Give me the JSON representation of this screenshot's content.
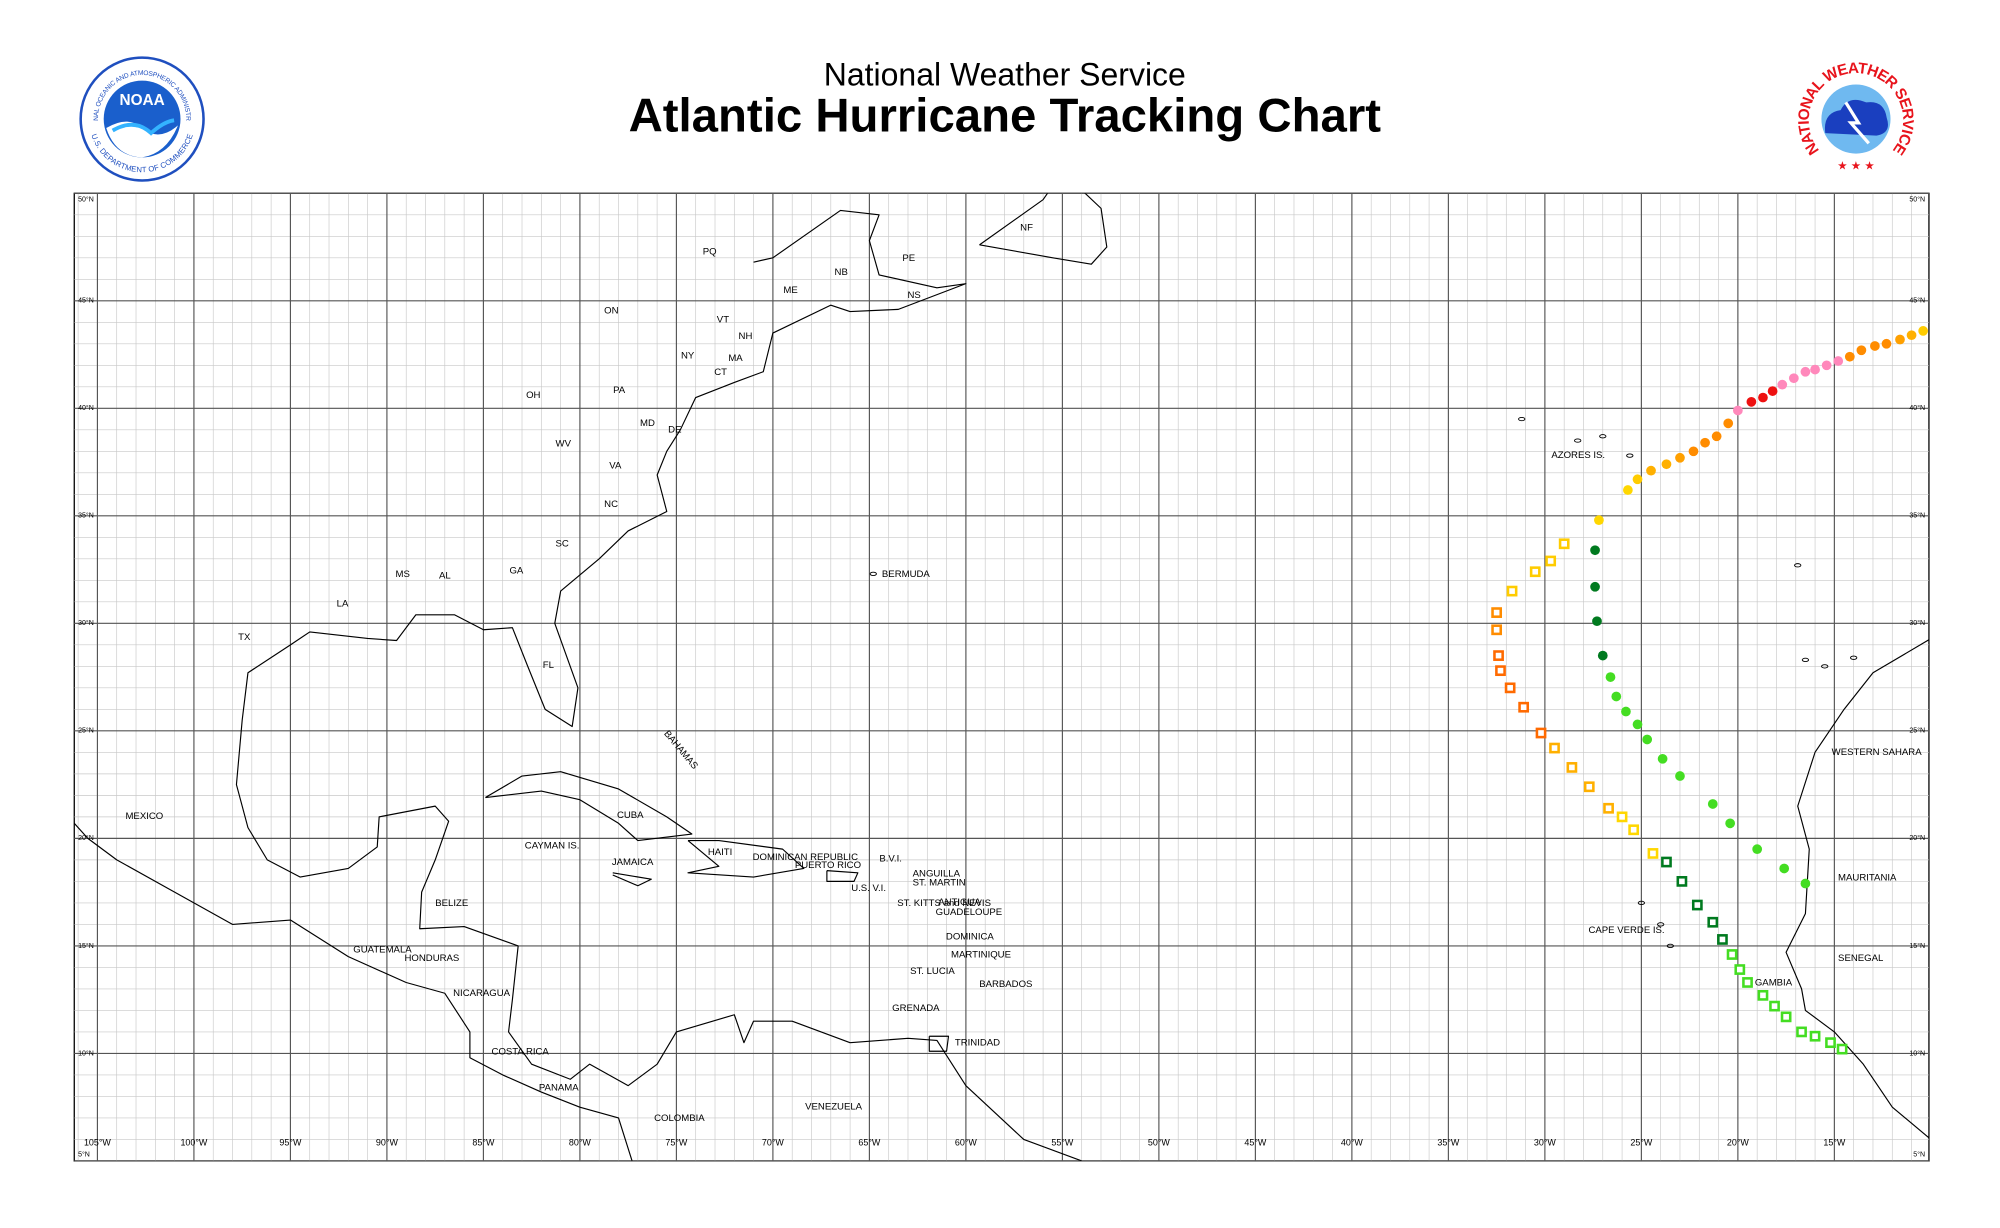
{
  "header": {
    "subtitle": "National Weather Service",
    "title": "Atlantic Hurricane Tracking Chart"
  },
  "logos": {
    "noaa": {
      "name": "NOAA",
      "ring_top": "NATIONAL OCEANIC AND ATMOSPHERIC ADMINISTRATION",
      "ring_bottom": "U.S. DEPARTMENT OF COMMERCE"
    },
    "nws": {
      "ring": "NATIONAL WEATHER SERVICE"
    }
  },
  "map": {
    "xlim": [
      -106.2,
      -10.1
    ],
    "ylim": [
      5,
      50
    ],
    "grid": true,
    "xticks": [
      {
        "value": -105,
        "label": "105°W"
      },
      {
        "value": -100,
        "label": "100°W"
      },
      {
        "value": -95,
        "label": "95°W"
      },
      {
        "value": -90,
        "label": "90°W"
      },
      {
        "value": -85,
        "label": "85°W"
      },
      {
        "value": -80,
        "label": "80°W"
      },
      {
        "value": -75,
        "label": "75°W"
      },
      {
        "value": -70,
        "label": "70°W"
      },
      {
        "value": -65,
        "label": "65°W"
      },
      {
        "value": -60,
        "label": "60°W"
      },
      {
        "value": -55,
        "label": "55°W"
      },
      {
        "value": -50,
        "label": "50°W"
      },
      {
        "value": -45,
        "label": "45°W"
      },
      {
        "value": -40,
        "label": "40°W"
      },
      {
        "value": -35,
        "label": "35°W"
      },
      {
        "value": -30,
        "label": "30°W"
      },
      {
        "value": -25,
        "label": "25°W"
      },
      {
        "value": -20,
        "label": "20°W"
      },
      {
        "value": -15,
        "label": "15°W"
      }
    ],
    "yticks": [
      {
        "value": 5,
        "label": "5°N"
      },
      {
        "value": 10,
        "label": "10°N"
      },
      {
        "value": 15,
        "label": "15°N"
      },
      {
        "value": 20,
        "label": "20°N"
      },
      {
        "value": 25,
        "label": "25°N"
      },
      {
        "value": 30,
        "label": "30°N"
      },
      {
        "value": 35,
        "label": "35°N"
      },
      {
        "value": 40,
        "label": "40°N"
      },
      {
        "value": 45,
        "label": "45°N"
      },
      {
        "value": 50,
        "label": "50°N"
      }
    ],
    "labels": [
      "PQ",
      "NB",
      "PE",
      "NS",
      "NF",
      "ME",
      "VT",
      "NH",
      "MA",
      "CT",
      "NY",
      "ON",
      "PA",
      "OH",
      "MD",
      "DE",
      "WV",
      "VA",
      "NC",
      "SC",
      "GA",
      "AL",
      "MS",
      "LA",
      "TX",
      "FL",
      "MEXICO",
      "BERMUDA",
      "BAHAMAS",
      "CUBA",
      "CAYMAN IS.",
      "JAMAICA",
      "HAITI",
      "DOMINICAN REPUBLIC",
      "PUERTO RICO",
      "U.S. V.I.",
      "B.V.I.",
      "ANGUILLA",
      "ST. MARTIN",
      "ST. KITTS and NEVIS",
      "ANTIGUA",
      "GUADELOUPE",
      "DOMINICA",
      "MARTINIQUE",
      "ST. LUCIA",
      "BARBADOS",
      "GRENADA",
      "TRINIDAD",
      "BELIZE",
      "GUATEMALA",
      "HONDURAS",
      "NICARAGUA",
      "COSTA RICA",
      "PANAMA",
      "COLOMBIA",
      "VENEZUELA",
      "AZORES IS.",
      "CAPE VERDE IS.",
      "WESTERN SAHARA",
      "MAURITANIA",
      "SENEGAL",
      "GAMBIA"
    ],
    "tracks": [
      {
        "marker": "square",
        "lon": [
          -14.6,
          -15.2,
          -16.0,
          -16.7,
          -17.5,
          -18.1,
          -18.7,
          -19.5,
          -19.9,
          -20.3,
          -20.8,
          -21.3,
          -22.1,
          -22.9,
          -23.7,
          -24.4,
          -25.4,
          -26.0,
          -26.7,
          -27.7,
          -28.6,
          -29.5,
          -30.2,
          -31.1,
          -31.8,
          -32.3,
          -32.4,
          -32.5,
          -32.5,
          -31.7,
          -30.5,
          -29.7,
          -29.0
        ],
        "lat": [
          10.2,
          10.5,
          10.8,
          11.0,
          11.7,
          12.2,
          12.7,
          13.3,
          13.9,
          14.6,
          15.3,
          16.1,
          16.9,
          18.0,
          18.9,
          19.3,
          20.4,
          21.0,
          21.4,
          22.4,
          23.3,
          24.2,
          24.9,
          26.1,
          27.0,
          27.8,
          28.5,
          29.7,
          30.5,
          31.5,
          32.4,
          32.9,
          33.7
        ],
        "colors": [
          "#44dd22",
          "#44dd22",
          "#44dd22",
          "#44dd22",
          "#44dd22",
          "#44dd22",
          "#44dd22",
          "#44dd22",
          "#44dd22",
          "#44dd22",
          "#007a1f",
          "#007a1f",
          "#007a1f",
          "#007a1f",
          "#007a1f",
          "#ffd700",
          "#ffd700",
          "#ffd700",
          "#ffb000",
          "#ffb000",
          "#ffb000",
          "#ffb000",
          "#ff6a00",
          "#ff6a00",
          "#ff6a00",
          "#ff6a00",
          "#ff6a00",
          "#ff8c00",
          "#ff8c00",
          "#ffcc00",
          "#ffcc00",
          "#ffcc00",
          "#ffcc00"
        ]
      },
      {
        "marker": "circle",
        "lon": [
          -27.2,
          -25.7,
          -25.2,
          -24.5,
          -23.7,
          -23.0,
          -22.3,
          -21.7,
          -21.1,
          -20.5,
          -20.0,
          -19.3,
          -18.7,
          -18.2,
          -17.7,
          -17.1,
          -16.5,
          -16.0,
          -15.4,
          -14.8,
          -14.2,
          -13.6,
          -12.9,
          -12.3,
          -11.6,
          -11.0,
          -10.4
        ],
        "lat": [
          34.8,
          36.2,
          36.7,
          37.1,
          37.4,
          37.7,
          38.0,
          38.4,
          38.7,
          39.3,
          39.9,
          40.3,
          40.5,
          40.8,
          41.1,
          41.4,
          41.7,
          41.8,
          42.0,
          42.2,
          42.4,
          42.7,
          42.9,
          43.0,
          43.2,
          43.4,
          43.6
        ],
        "colors": [
          "#ffd700",
          "#ffd700",
          "#ffcc00",
          "#ffb000",
          "#ffb000",
          "#ffa000",
          "#ff8c00",
          "#ff8c00",
          "#ff8c00",
          "#ff8c00",
          "#ff88bb",
          "#ee1111",
          "#ee1111",
          "#ee1111",
          "#ff88bb",
          "#ff88bb",
          "#ff88bb",
          "#ff88bb",
          "#ff88bb",
          "#ff88bb",
          "#ff8c00",
          "#ff8c00",
          "#ff8c00",
          "#ff8c00",
          "#ffa000",
          "#ffb000",
          "#ffcc00"
        ]
      },
      {
        "marker": "circle",
        "lon": [
          -16.5,
          -17.6,
          -19.0,
          -20.4,
          -21.3,
          -23.0,
          -23.9,
          -24.7,
          -25.2,
          -25.8,
          -26.3,
          -26.6,
          -27.0,
          -27.3,
          -27.4,
          -27.4
        ],
        "lat": [
          17.9,
          18.6,
          19.5,
          20.7,
          21.6,
          22.9,
          23.7,
          24.6,
          25.3,
          25.9,
          26.6,
          27.5,
          28.5,
          30.1,
          31.7,
          33.4
        ],
        "colors": [
          "#44dd22",
          "#44dd22",
          "#44dd22",
          "#44dd22",
          "#44dd22",
          "#44dd22",
          "#44dd22",
          "#44dd22",
          "#44dd22",
          "#44dd22",
          "#44dd22",
          "#44dd22",
          "#007a1f",
          "#007a1f",
          "#007a1f",
          "#007a1f"
        ]
      }
    ]
  }
}
